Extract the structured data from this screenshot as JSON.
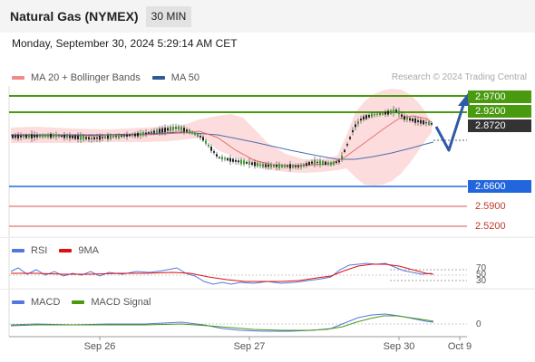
{
  "header": {
    "instrument": "Natural Gas (NYMEX)",
    "interval": "30 MIN",
    "timestamp": "Monday, September 30, 2024 5:29:14 AM CET"
  },
  "main_chart": {
    "legend": [
      {
        "label": "MA 20 + Bollinger Bands",
        "color": "#f08a8a"
      },
      {
        "label": "MA 50",
        "color": "#2f5a9a"
      }
    ],
    "copyright": "Research © 2024 Trading Central",
    "price_levels": {
      "resistance_2": "2.9700",
      "resistance_1": "2.9200",
      "last_price": "2.8720",
      "pivot": "2.6600",
      "support_1": "2.5900",
      "support_2": "2.5200"
    },
    "colors": {
      "resistance": "#4a9a10",
      "last": "#333333",
      "pivot": "#2266dd",
      "support": "#e57373",
      "arrow": "#2e5aa8"
    }
  },
  "rsi_panel": {
    "legend": [
      {
        "label": "RSI",
        "color": "#5577dd"
      },
      {
        "label": "9MA",
        "color": "#dd1111"
      }
    ],
    "levels": [
      "70",
      "50",
      "30"
    ]
  },
  "macd_panel": {
    "legend": [
      {
        "label": "MACD",
        "color": "#5577dd"
      },
      {
        "label": "MACD Signal",
        "color": "#4a9a10"
      }
    ],
    "zero_label": "0"
  },
  "x_axis": {
    "labels": [
      "Sep 26",
      "Sep 27",
      "Sep 30",
      "Oct 9"
    ]
  }
}
